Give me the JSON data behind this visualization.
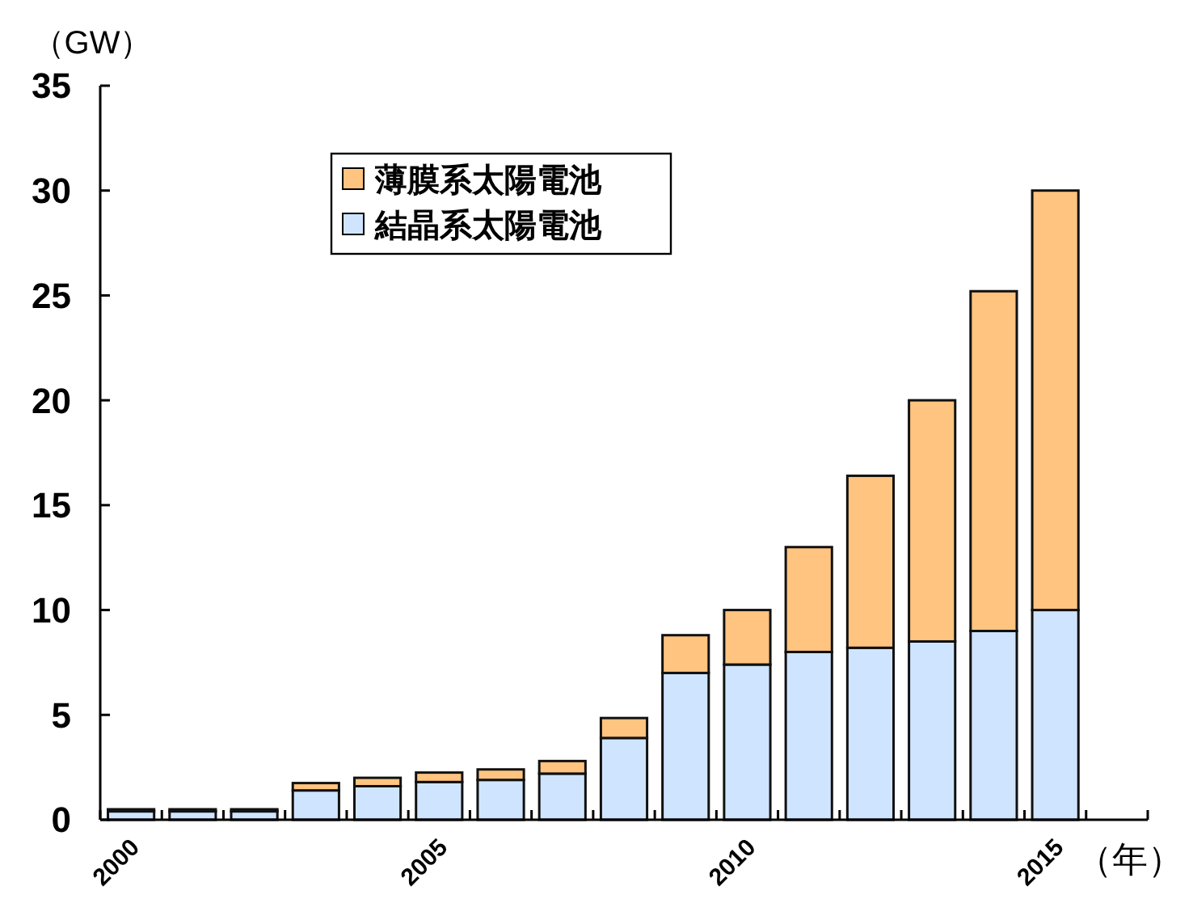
{
  "chart_data": {
    "type": "bar",
    "stacked": true,
    "ylabel": "（GW）",
    "xlabel": "（年）",
    "categories": [
      "2000",
      null,
      null,
      null,
      null,
      "2005",
      null,
      null,
      null,
      null,
      "2010",
      null,
      null,
      null,
      null,
      "2015",
      null
    ],
    "series": [
      {
        "name": "結晶系太陽電池",
        "color": "#cfe5ff",
        "values": [
          0.4,
          0.4,
          0.4,
          1.4,
          1.6,
          1.8,
          1.9,
          2.2,
          3.9,
          7.0,
          7.4,
          8.0,
          8.2,
          8.5,
          9.0,
          10.0,
          null
        ]
      },
      {
        "name": "薄膜系太陽電池",
        "color": "#ffc47f",
        "values": [
          0.1,
          0.1,
          0.1,
          0.35,
          0.4,
          0.45,
          0.5,
          0.6,
          0.95,
          1.8,
          2.6,
          5.0,
          8.2,
          11.5,
          16.2,
          20.0,
          null
        ]
      }
    ],
    "ylim": [
      0,
      35
    ],
    "yticks": [
      0,
      5,
      10,
      15,
      20,
      25,
      30,
      35
    ],
    "grid": false,
    "legend": "top left"
  }
}
